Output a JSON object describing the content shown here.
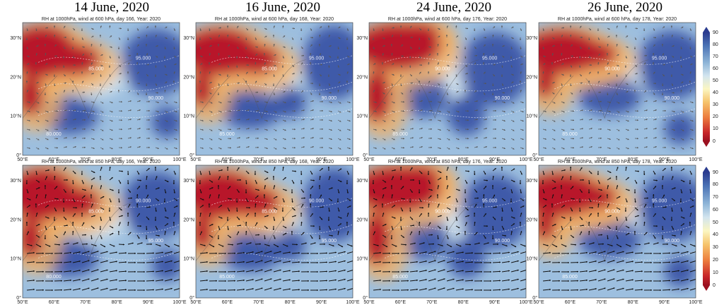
{
  "column_titles": [
    "14 June, 2020",
    "16 June, 2020",
    "24 June, 2020",
    "26 June, 2020"
  ],
  "panels": [
    {
      "title": "RH at 1000hPa, wind at 600 hPa, day 166, Year: 2020",
      "contours": [
        "85.000",
        "95.000",
        "90.000",
        "80.000"
      ]
    },
    {
      "title": "RH at 1000hPa, wind at 600 hPa, day 168, Year: 2020",
      "contours": [
        "85.000",
        "95.000",
        "90.000",
        "85.000"
      ]
    },
    {
      "title": "RH at 1000hPa, wind at 600 hPa, day 176, Year: 2020",
      "contours": [
        "90.000",
        "95.000",
        "90.000",
        "85.000"
      ]
    },
    {
      "title": "RH at 1000hPa, wind at 600 hPa, day 178, Year: 2020",
      "contours": [
        "90.000",
        "95.000",
        "90.000",
        "85.000"
      ]
    },
    {
      "title": "RH at 1000hPa, wind at 850 hPa, day 166, Year: 2020",
      "contours": [
        "85.000",
        "90.000",
        "95.000",
        "80.000"
      ]
    },
    {
      "title": "RH at 1000hPa, wind at 850 hPa, day 168, Year: 2020",
      "contours": [
        "85.000",
        "90.000",
        "95.000",
        "85.000"
      ]
    },
    {
      "title": "RH at 1000hPa, wind at 850 hPa, day 176, Year: 2020",
      "contours": [
        "90.000",
        "95.000",
        "90.000",
        "85.000"
      ]
    },
    {
      "title": "RH at 1000hPa, wind at 850 hPa, day 178, Year: 2020",
      "contours": [
        "90.000",
        "95.000",
        "90.000",
        "85.000"
      ]
    }
  ],
  "lon_ticks": [
    "50°E",
    "60°E",
    "70°E",
    "80°E",
    "90°E",
    "100°E"
  ],
  "lat_ticks": [
    "0°",
    "10°N",
    "20°N",
    "30°N"
  ],
  "colorbar_ticks": [
    "0",
    "10",
    "20",
    "30",
    "40",
    "50",
    "60",
    "70",
    "80",
    "90"
  ],
  "colors": {
    "dry": "#b8192a",
    "moist": "#2d49a0",
    "mid": "#fbf3b8"
  }
}
